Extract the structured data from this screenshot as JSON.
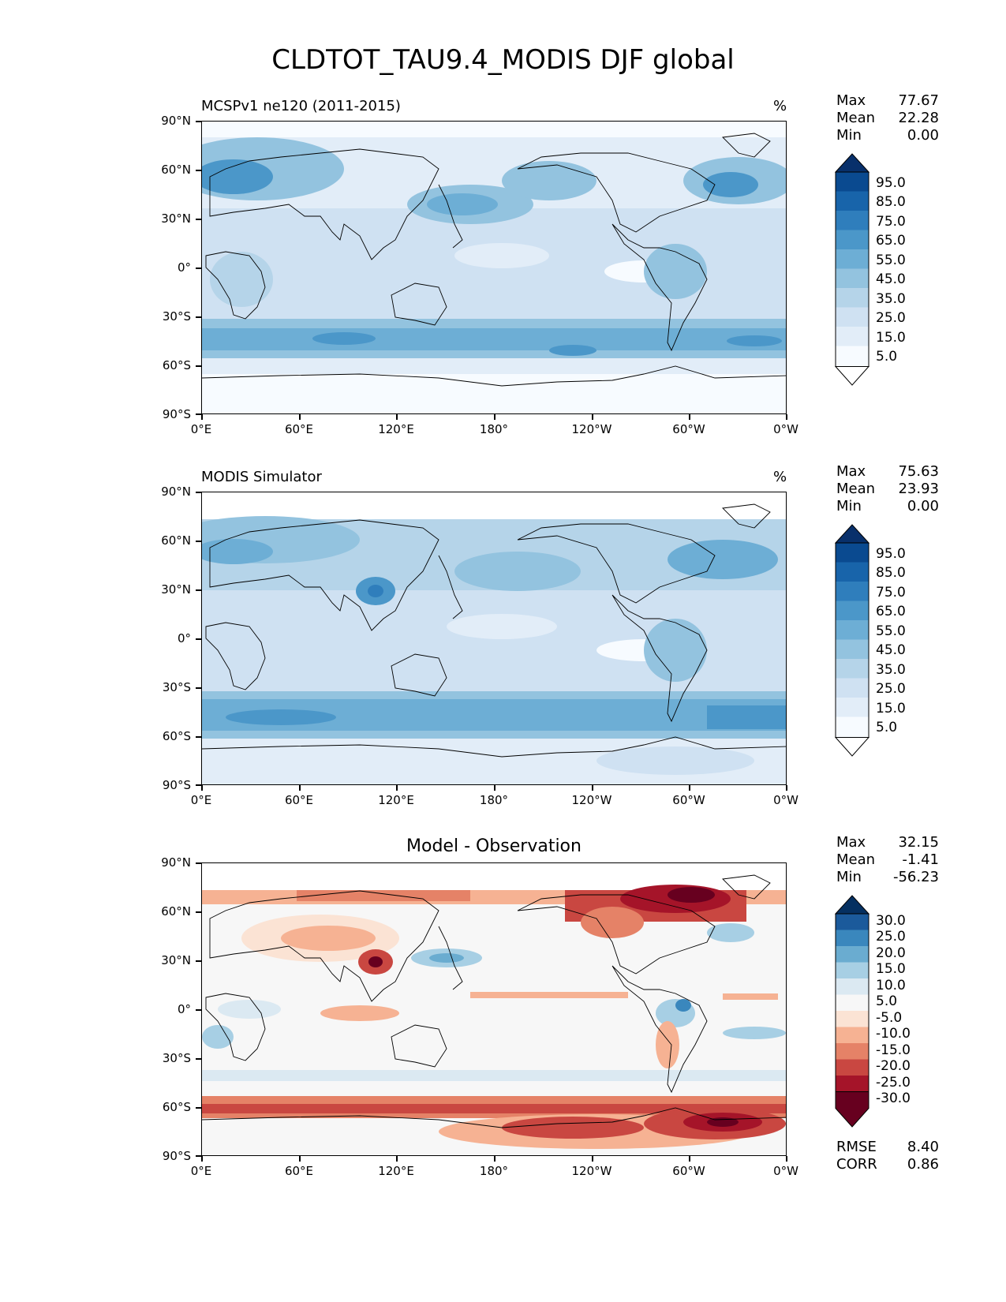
{
  "figure": {
    "title": "CLDTOT_TAU9.4_MODIS DJF global"
  },
  "axes": {
    "y_ticks": [
      "90°N",
      "60°N",
      "30°N",
      "0°",
      "30°S",
      "60°S",
      "90°S"
    ],
    "x_ticks": [
      "0°E",
      "60°E",
      "120°E",
      "180°",
      "120°W",
      "60°W",
      "0°W"
    ]
  },
  "colors": {
    "blues": [
      "#f7fbff",
      "#e2edf8",
      "#cfe1f2",
      "#b5d4e9",
      "#93c3df",
      "#6daed5",
      "#4b97c9",
      "#2f7ebc",
      "#1864aa",
      "#0a4a90",
      "#08306b"
    ],
    "diff": [
      "#67001f",
      "#a51429",
      "#c94741",
      "#e58267",
      "#f6b293",
      "#fbe3d4",
      "#f7f7f7",
      "#dbe9f2",
      "#a7cfe4",
      "#6aacd0",
      "#3a87bd",
      "#1b5a9b",
      "#053061"
    ]
  },
  "panels": [
    {
      "title_left": "MCSPv1 ne120 (2011-2015)",
      "units": "%",
      "stats": [
        {
          "label": "Max",
          "value": "77.67"
        },
        {
          "label": "Mean",
          "value": "22.28"
        },
        {
          "label": "Min",
          "value": "0.00"
        }
      ],
      "colorbar_labels": [
        "95.0",
        "85.0",
        "75.0",
        "65.0",
        "55.0",
        "45.0",
        "35.0",
        "25.0",
        "15.0",
        "5.0"
      ]
    },
    {
      "title_left": "MODIS Simulator",
      "units": "%",
      "stats": [
        {
          "label": "Max",
          "value": "75.63"
        },
        {
          "label": "Mean",
          "value": "23.93"
        },
        {
          "label": "Min",
          "value": "0.00"
        }
      ],
      "colorbar_labels": [
        "95.0",
        "85.0",
        "75.0",
        "65.0",
        "55.0",
        "45.0",
        "35.0",
        "25.0",
        "15.0",
        "5.0"
      ]
    },
    {
      "title_center": "Model - Observation",
      "stats": [
        {
          "label": "Max",
          "value": "32.15"
        },
        {
          "label": "Mean",
          "value": "-1.41"
        },
        {
          "label": "Min",
          "value": "-56.23"
        }
      ],
      "colorbar_labels": [
        "30.0",
        "25.0",
        "20.0",
        "15.0",
        "10.0",
        "5.0",
        "-5.0",
        "-10.0",
        "-15.0",
        "-20.0",
        "-25.0",
        "-30.0"
      ],
      "metrics": [
        {
          "label": "RMSE",
          "value": "8.40"
        },
        {
          "label": "CORR",
          "value": "0.86"
        }
      ]
    }
  ]
}
